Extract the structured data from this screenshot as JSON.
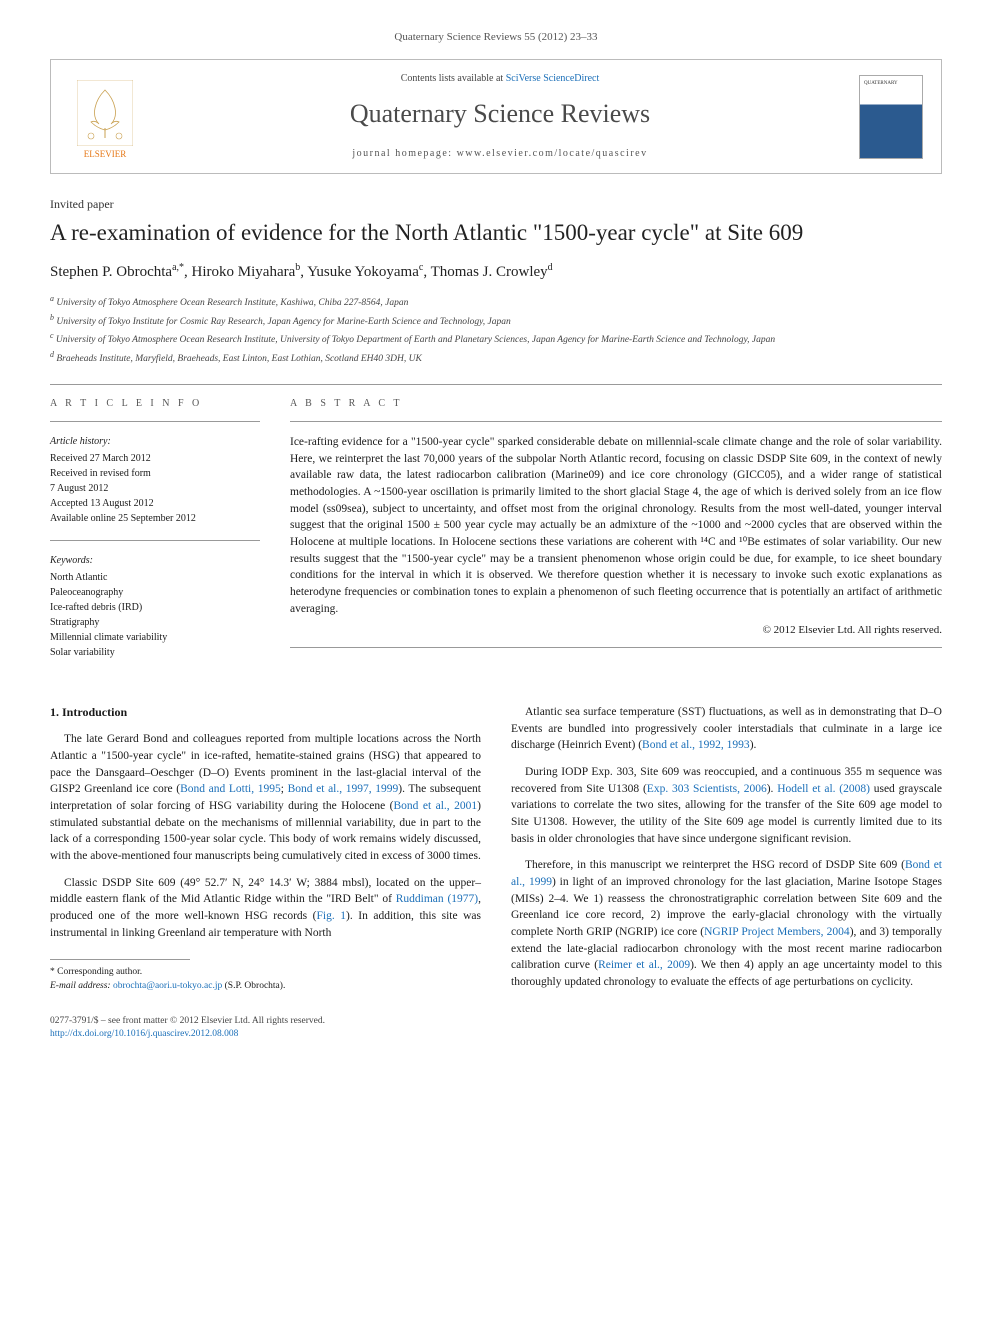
{
  "journal_ref": "Quaternary Science Reviews 55 (2012) 23–33",
  "header": {
    "contents_prefix": "Contents lists available at ",
    "contents_link": "SciVerse ScienceDirect",
    "journal_title": "Quaternary Science Reviews",
    "homepage_prefix": "journal homepage: ",
    "homepage": "www.elsevier.com/locate/quascirev",
    "publisher": "ELSEVIER",
    "cover_label": "QUATERNARY"
  },
  "paper_type": "Invited paper",
  "title": "A re-examination of evidence for the North Atlantic \"1500-year cycle\" at Site 609",
  "authors_html": "Stephen P. Obrochta",
  "authors": [
    {
      "name": "Stephen P. Obrochta",
      "sup": "a,*"
    },
    {
      "name": "Hiroko Miyahara",
      "sup": "b"
    },
    {
      "name": "Yusuke Yokoyama",
      "sup": "c"
    },
    {
      "name": "Thomas J. Crowley",
      "sup": "d"
    }
  ],
  "affiliations": [
    {
      "sup": "a",
      "text": "University of Tokyo Atmosphere Ocean Research Institute, Kashiwa, Chiba 227-8564, Japan"
    },
    {
      "sup": "b",
      "text": "University of Tokyo Institute for Cosmic Ray Research, Japan Agency for Marine-Earth Science and Technology, Japan"
    },
    {
      "sup": "c",
      "text": "University of Tokyo Atmosphere Ocean Research Institute, University of Tokyo Department of Earth and Planetary Sciences, Japan Agency for Marine-Earth Science and Technology, Japan"
    },
    {
      "sup": "d",
      "text": "Braeheads Institute, Maryfield, Braeheads, East Linton, East Lothian, Scotland EH40 3DH, UK"
    }
  ],
  "article_info": {
    "heading": "A R T I C L E  I N F O",
    "history_label": "Article history:",
    "history": [
      "Received 27 March 2012",
      "Received in revised form",
      "7 August 2012",
      "Accepted 13 August 2012",
      "Available online 25 September 2012"
    ],
    "keywords_label": "Keywords:",
    "keywords": [
      "North Atlantic",
      "Paleoceanography",
      "Ice-rafted debris (IRD)",
      "Stratigraphy",
      "Millennial climate variability",
      "Solar variability"
    ]
  },
  "abstract": {
    "heading": "A B S T R A C T",
    "text": "Ice-rafting evidence for a \"1500-year cycle\" sparked considerable debate on millennial-scale climate change and the role of solar variability. Here, we reinterpret the last 70,000 years of the subpolar North Atlantic record, focusing on classic DSDP Site 609, in the context of newly available raw data, the latest radiocarbon calibration (Marine09) and ice core chronology (GICC05), and a wider range of statistical methodologies. A ~1500-year oscillation is primarily limited to the short glacial Stage 4, the age of which is derived solely from an ice flow model (ss09sea), subject to uncertainty, and offset most from the original chronology. Results from the most well-dated, younger interval suggest that the original 1500 ± 500 year cycle may actually be an admixture of the ~1000 and ~2000 cycles that are observed within the Holocene at multiple locations. In Holocene sections these variations are coherent with ¹⁴C and ¹⁰Be estimates of solar variability. Our new results suggest that the \"1500-year cycle\" may be a transient phenomenon whose origin could be due, for example, to ice sheet boundary conditions for the interval in which it is observed. We therefore question whether it is necessary to invoke such exotic explanations as heterodyne frequencies or combination tones to explain a phenomenon of such fleeting occurrence that is potentially an artifact of arithmetic averaging.",
    "copyright": "© 2012 Elsevier Ltd. All rights reserved."
  },
  "body": {
    "section_heading": "1. Introduction",
    "left_col": [
      "The late Gerard Bond and colleagues reported from multiple locations across the North Atlantic a \"1500-year cycle\" in ice-rafted, hematite-stained grains (HSG) that appeared to pace the Dansgaard–Oeschger (D–O) Events prominent in the last-glacial interval of the GISP2 Greenland ice core (<span class=\"cite\">Bond and Lotti, 1995</span>; <span class=\"cite\">Bond et al., 1997, 1999</span>). The subsequent interpretation of solar forcing of HSG variability during the Holocene (<span class=\"cite\">Bond et al., 2001</span>) stimulated substantial debate on the mechanisms of millennial variability, due in part to the lack of a corresponding 1500-year solar cycle. This body of work remains widely discussed, with the above-mentioned four manuscripts being cumulatively cited in excess of 3000 times.",
      "Classic DSDP Site 609 (49° 52.7′ N, 24° 14.3′ W; 3884 mbsl), located on the upper–middle eastern flank of the Mid Atlantic Ridge within the \"IRD Belt\" of <span class=\"cite\">Ruddiman (1977)</span>, produced one of the more well-known HSG records (<span class=\"cite\">Fig. 1</span>). In addition, this site was instrumental in linking Greenland air temperature with North"
    ],
    "right_col": [
      "Atlantic sea surface temperature (SST) fluctuations, as well as in demonstrating that D–O Events are bundled into progressively cooler interstadials that culminate in a large ice discharge (Heinrich Event) (<span class=\"cite\">Bond et al., 1992, 1993</span>).",
      "During IODP Exp. 303, Site 609 was reoccupied, and a continuous 355 m sequence was recovered from Site U1308 (<span class=\"cite\">Exp. 303 Scientists, 2006</span>). <span class=\"cite\">Hodell et al. (2008)</span> used grayscale variations to correlate the two sites, allowing for the transfer of the Site 609 age model to Site U1308. However, the utility of the Site 609 age model is currently limited due to its basis in older chronologies that have since undergone significant revision.",
      "Therefore, in this manuscript we reinterpret the HSG record of DSDP Site 609 (<span class=\"cite\">Bond et al., 1999</span>) in light of an improved chronology for the last glaciation, Marine Isotope Stages (MISs) 2–4. We 1) reassess the chronostratigraphic correlation between Site 609 and the Greenland ice core record, 2) improve the early-glacial chronology with the virtually complete North GRIP (NGRIP) ice core (<span class=\"cite\">NGRIP Project Members, 2004</span>), and 3) temporally extend the late-glacial radiocarbon chronology with the most recent marine radiocarbon calibration curve (<span class=\"cite\">Reimer et al., 2009</span>). We then 4) apply an age uncertainty model to this thoroughly updated chronology to evaluate the effects of age perturbations on cyclicity."
    ]
  },
  "corr": {
    "label": "* Corresponding author.",
    "email_label": "E-mail address: ",
    "email": "obrochta@aori.u-tokyo.ac.jp",
    "email_suffix": " (S.P. Obrochta)."
  },
  "footer": {
    "line1": "0277-3791/$ – see front matter © 2012 Elsevier Ltd. All rights reserved.",
    "doi": "http://dx.doi.org/10.1016/j.quascirev.2012.08.008"
  },
  "colors": {
    "link": "#1b6fb8",
    "publisher": "#e67817",
    "text": "#1a1a1a",
    "muted": "#555555",
    "rule": "#999999"
  }
}
